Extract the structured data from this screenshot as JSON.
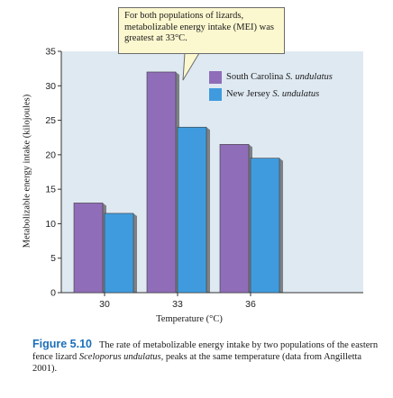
{
  "chart_data": {
    "type": "bar",
    "categories": [
      "30",
      "33",
      "36"
    ],
    "series": [
      {
        "name": "South Carolina S. undulatus",
        "values": [
          13,
          32,
          21.5
        ],
        "color": "#8f6db8"
      },
      {
        "name": "New Jersey S. undulatus",
        "values": [
          11.5,
          24,
          19.5
        ],
        "color": "#3f9bde"
      }
    ],
    "xlabel": "Temperature (°C)",
    "ylabel": "Metabolizable energy intake (kilojoules)",
    "ylim": [
      0,
      35
    ],
    "yticks": [
      0,
      5,
      10,
      15,
      20,
      25,
      30,
      35
    ],
    "grid": false,
    "legend_position": "top-right"
  },
  "callout": {
    "text": "For both populations of lizards, metabolizable energy intake (MEI) was greatest at 33°C."
  },
  "legend": {
    "sc_text": "South Carolina ",
    "sc_italic": "S. undulatus",
    "nj_text": "New Jersey ",
    "nj_italic": "S. undulatus"
  },
  "caption": {
    "label": "Figure 5.10",
    "text_1": "The rate of metabolizable energy intake by two populations of the eastern fence lizard ",
    "italic": "Sceloporus undulatus,",
    "text_2": " peaks at the same temperature (data from Angilletta 2001)."
  },
  "colors": {
    "plot_bg": "#dfe9f2",
    "callout_bg": "#fbf7cf",
    "caption_label": "#1c6fb8"
  }
}
